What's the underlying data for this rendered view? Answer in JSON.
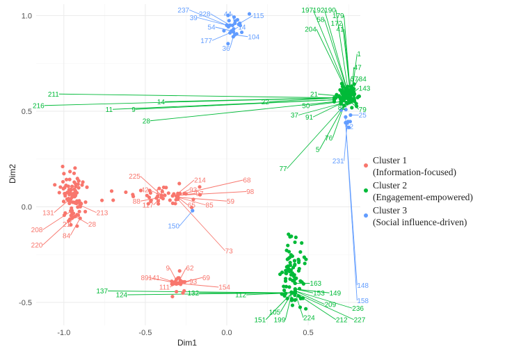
{
  "chart_data": {
    "type": "scatter",
    "title": "",
    "xlabel": "Dim1",
    "ylabel": "Dim2",
    "xlim": [
      -1.17,
      0.82
    ],
    "ylim": [
      -0.62,
      1.06
    ],
    "x_ticks": [
      -1.0,
      -0.5,
      0.0,
      0.5
    ],
    "x_tick_labels": [
      "-1.0",
      "-0.5",
      "0.0",
      "0.5"
    ],
    "y_ticks": [
      -0.5,
      0.0,
      0.5,
      1.0
    ],
    "y_tick_labels": [
      "-0.5",
      "0.0",
      "0.5",
      "1.0"
    ],
    "grid": true,
    "legend_position": "right",
    "series": [
      {
        "name": "Cluster 1",
        "desc": "(Information-focused)",
        "color": "#F8766D"
      },
      {
        "name": "Cluster 2",
        "desc": "(Engagement-empowered)",
        "color": "#00BA38"
      },
      {
        "name": "Cluster 3",
        "desc": "(Social influence-driven)",
        "color": "#619CFF"
      }
    ],
    "groups": [
      {
        "cluster": 1,
        "center": [
          -0.95,
          0.05
        ],
        "sx": 0.04,
        "sy": 0.07,
        "n": 80
      },
      {
        "cluster": 1,
        "center": [
          -0.4,
          0.06
        ],
        "sx": 0.14,
        "sy": 0.025,
        "n": 40
      },
      {
        "cluster": 1,
        "center": [
          -0.3,
          -0.4
        ],
        "sx": 0.03,
        "sy": 0.03,
        "n": 18
      },
      {
        "cluster": 2,
        "center": [
          0.75,
          0.58
        ],
        "sx": 0.03,
        "sy": 0.025,
        "n": 80
      },
      {
        "cluster": 2,
        "center": [
          0.4,
          -0.35
        ],
        "sx": 0.04,
        "sy": 0.09,
        "n": 80
      },
      {
        "cluster": 3,
        "center": [
          0.04,
          0.93
        ],
        "sx": 0.04,
        "sy": 0.05,
        "n": 16
      },
      {
        "cluster": 3,
        "center": [
          0.73,
          0.46
        ],
        "sx": 0.02,
        "sy": 0.03,
        "n": 5
      }
    ],
    "labeled_points": [
      {
        "id": "237",
        "cluster": 3,
        "anchor": [
          0.0,
          0.95
        ],
        "x": -0.23,
        "y": 1.03
      },
      {
        "id": "228",
        "cluster": 3,
        "anchor": [
          0.02,
          0.95
        ],
        "x": -0.1,
        "y": 1.01
      },
      {
        "id": "44",
        "cluster": 3,
        "anchor": [
          0.05,
          0.96
        ],
        "x": 0.03,
        "y": 1.01
      },
      {
        "id": "115",
        "cluster": 3,
        "anchor": [
          0.08,
          0.96
        ],
        "x": 0.16,
        "y": 1.0
      },
      {
        "id": "39",
        "cluster": 3,
        "anchor": [
          0.0,
          0.95
        ],
        "x": -0.18,
        "y": 0.99
      },
      {
        "id": "54",
        "cluster": 3,
        "anchor": [
          0.03,
          0.92
        ],
        "x": -0.07,
        "y": 0.94
      },
      {
        "id": "14",
        "cluster": 3,
        "anchor": [
          0.03,
          0.92
        ],
        "x": 0.07,
        "y": 0.94
      },
      {
        "id": "177",
        "cluster": 3,
        "anchor": [
          0.02,
          0.91
        ],
        "x": -0.09,
        "y": 0.87
      },
      {
        "id": "104",
        "cluster": 3,
        "anchor": [
          0.05,
          0.9
        ],
        "x": 0.13,
        "y": 0.89
      },
      {
        "id": "36",
        "cluster": 3,
        "anchor": [
          0.04,
          0.89
        ],
        "x": 0.02,
        "y": 0.83
      },
      {
        "id": "197",
        "cluster": 2,
        "anchor": [
          0.75,
          0.58
        ],
        "x": 0.53,
        "y": 1.03
      },
      {
        "id": "192",
        "cluster": 2,
        "anchor": [
          0.75,
          0.58
        ],
        "x": 0.6,
        "y": 1.03
      },
      {
        "id": "190",
        "cluster": 2,
        "anchor": [
          0.75,
          0.58
        ],
        "x": 0.67,
        "y": 1.03
      },
      {
        "id": "179",
        "cluster": 2,
        "anchor": [
          0.76,
          0.58
        ],
        "x": 0.72,
        "y": 1.0
      },
      {
        "id": "58",
        "cluster": 2,
        "anchor": [
          0.75,
          0.58
        ],
        "x": 0.6,
        "y": 0.98
      },
      {
        "id": "172",
        "cluster": 2,
        "anchor": [
          0.76,
          0.58
        ],
        "x": 0.71,
        "y": 0.96
      },
      {
        "id": "204",
        "cluster": 2,
        "anchor": [
          0.75,
          0.58
        ],
        "x": 0.55,
        "y": 0.93
      },
      {
        "id": "41",
        "cluster": 2,
        "anchor": [
          0.76,
          0.58
        ],
        "x": 0.72,
        "y": 0.93
      },
      {
        "id": "1",
        "cluster": 2,
        "anchor": [
          0.77,
          0.6
        ],
        "x": 0.8,
        "y": 0.8
      },
      {
        "id": "47",
        "cluster": 2,
        "anchor": [
          0.77,
          0.6
        ],
        "x": 0.78,
        "y": 0.73
      },
      {
        "id": "84",
        "cluster": 2,
        "anchor": [
          0.77,
          0.61
        ],
        "x": 0.81,
        "y": 0.67
      },
      {
        "id": "57",
        "cluster": 2,
        "anchor": [
          0.76,
          0.61
        ],
        "x": 0.76,
        "y": 0.67
      },
      {
        "id": "143",
        "cluster": 2,
        "anchor": [
          0.78,
          0.6
        ],
        "x": 0.81,
        "y": 0.62
      },
      {
        "id": "211",
        "cluster": 2,
        "anchor": [
          0.66,
          0.57
        ],
        "x": -1.03,
        "y": 0.59
      },
      {
        "id": "216",
        "cluster": 2,
        "anchor": [
          0.66,
          0.57
        ],
        "x": -1.12,
        "y": 0.53
      },
      {
        "id": "14",
        "cluster": 2,
        "anchor": [
          0.66,
          0.57
        ],
        "x": -0.38,
        "y": 0.55
      },
      {
        "id": "11",
        "cluster": 2,
        "anchor": [
          0.66,
          0.56
        ],
        "x": -0.7,
        "y": 0.51
      },
      {
        "id": "9",
        "cluster": 2,
        "anchor": [
          0.66,
          0.56
        ],
        "x": -0.56,
        "y": 0.51
      },
      {
        "id": "28",
        "cluster": 2,
        "anchor": [
          0.66,
          0.55
        ],
        "x": -0.47,
        "y": 0.45
      },
      {
        "id": "22",
        "cluster": 2,
        "anchor": [
          0.67,
          0.57
        ],
        "x": 0.26,
        "y": 0.55
      },
      {
        "id": "21",
        "cluster": 2,
        "anchor": [
          0.69,
          0.58
        ],
        "x": 0.56,
        "y": 0.59
      },
      {
        "id": "50",
        "cluster": 2,
        "anchor": [
          0.7,
          0.55
        ],
        "x": 0.51,
        "y": 0.53
      },
      {
        "id": "37",
        "cluster": 2,
        "anchor": [
          0.7,
          0.54
        ],
        "x": 0.44,
        "y": 0.48
      },
      {
        "id": "91",
        "cluster": 2,
        "anchor": [
          0.7,
          0.54
        ],
        "x": 0.53,
        "y": 0.47
      },
      {
        "id": "81",
        "cluster": 2,
        "anchor": [
          0.74,
          0.54
        ],
        "x": 0.73,
        "y": 0.52
      },
      {
        "id": "79",
        "cluster": 2,
        "anchor": [
          0.76,
          0.55
        ],
        "x": 0.81,
        "y": 0.51
      },
      {
        "id": "76",
        "cluster": 2,
        "anchor": [
          0.72,
          0.53
        ],
        "x": 0.65,
        "y": 0.36
      },
      {
        "id": "5",
        "cluster": 2,
        "anchor": [
          0.72,
          0.53
        ],
        "x": 0.57,
        "y": 0.3
      },
      {
        "id": "77",
        "cluster": 2,
        "anchor": [
          0.72,
          0.53
        ],
        "x": 0.37,
        "y": 0.2
      },
      {
        "id": "25",
        "cluster": 3,
        "anchor": [
          0.76,
          0.48
        ],
        "x": 0.81,
        "y": 0.48
      },
      {
        "id": "52",
        "cluster": 3,
        "anchor": [
          0.73,
          0.47
        ],
        "x": 0.73,
        "y": 0.42
      },
      {
        "id": "231",
        "cluster": 3,
        "anchor": [
          0.74,
          0.44
        ],
        "x": 0.72,
        "y": 0.24
      },
      {
        "id": "148",
        "cluster": 3,
        "anchor": [
          0.73,
          0.44
        ],
        "x": 0.8,
        "y": -0.41
      },
      {
        "id": "158",
        "cluster": 3,
        "anchor": [
          0.73,
          0.44
        ],
        "x": 0.8,
        "y": -0.49
      },
      {
        "id": "131",
        "cluster": 1,
        "anchor": [
          -0.95,
          0.05
        ],
        "x": -1.06,
        "y": -0.03
      },
      {
        "id": "213",
        "cluster": 1,
        "anchor": [
          -0.93,
          0.02
        ],
        "x": -0.8,
        "y": -0.03
      },
      {
        "id": "208",
        "cluster": 1,
        "anchor": [
          -0.95,
          -0.02
        ],
        "x": -1.13,
        "y": -0.12
      },
      {
        "id": "21",
        "cluster": 1,
        "anchor": [
          -0.95,
          -0.05
        ],
        "x": -0.96,
        "y": -0.09
      },
      {
        "id": "28",
        "cluster": 1,
        "anchor": [
          -0.93,
          -0.05
        ],
        "x": -0.85,
        "y": -0.09
      },
      {
        "id": "84",
        "cluster": 1,
        "anchor": [
          -0.9,
          -0.06
        ],
        "x": -0.96,
        "y": -0.15
      },
      {
        "id": "220",
        "cluster": 1,
        "anchor": [
          -0.95,
          -0.06
        ],
        "x": -1.13,
        "y": -0.2
      },
      {
        "id": "225",
        "cluster": 1,
        "anchor": [
          -0.4,
          0.06
        ],
        "x": -0.53,
        "y": 0.16
      },
      {
        "id": "214",
        "cluster": 1,
        "anchor": [
          -0.3,
          0.07
        ],
        "x": -0.2,
        "y": 0.14
      },
      {
        "id": "68",
        "cluster": 1,
        "anchor": [
          -0.26,
          0.07
        ],
        "x": 0.1,
        "y": 0.14
      },
      {
        "id": "42",
        "cluster": 1,
        "anchor": [
          -0.4,
          0.06
        ],
        "x": -0.48,
        "y": 0.09
      },
      {
        "id": "17",
        "cluster": 1,
        "anchor": [
          -0.38,
          0.06
        ],
        "x": -0.39,
        "y": 0.08
      },
      {
        "id": "93",
        "cluster": 1,
        "anchor": [
          -0.3,
          0.06
        ],
        "x": -0.23,
        "y": 0.09
      },
      {
        "id": "97",
        "cluster": 1,
        "anchor": [
          -0.3,
          0.06
        ],
        "x": -0.19,
        "y": 0.07
      },
      {
        "id": "98",
        "cluster": 1,
        "anchor": [
          -0.3,
          0.06
        ],
        "x": 0.12,
        "y": 0.08
      },
      {
        "id": "88",
        "cluster": 1,
        "anchor": [
          -0.4,
          0.05
        ],
        "x": -0.53,
        "y": 0.03
      },
      {
        "id": "117",
        "cluster": 1,
        "anchor": [
          -0.4,
          0.05
        ],
        "x": -0.45,
        "y": 0.01
      },
      {
        "id": "59",
        "cluster": 1,
        "anchor": [
          -0.3,
          0.05
        ],
        "x": 0.0,
        "y": 0.03
      },
      {
        "id": "85",
        "cluster": 1,
        "anchor": [
          -0.3,
          0.05
        ],
        "x": -0.13,
        "y": 0.01
      },
      {
        "id": "65",
        "cluster": 1,
        "anchor": [
          -0.3,
          0.05
        ],
        "x": -0.24,
        "y": 0.01
      },
      {
        "id": "73",
        "cluster": 1,
        "anchor": [
          -0.3,
          0.04
        ],
        "x": -0.01,
        "y": -0.23
      },
      {
        "id": "150",
        "cluster": 3,
        "anchor": [
          -0.21,
          -0.02
        ],
        "x": -0.29,
        "y": -0.1
      },
      {
        "id": "9",
        "cluster": 1,
        "anchor": [
          -0.3,
          -0.4
        ],
        "x": -0.35,
        "y": -0.32
      },
      {
        "id": "62",
        "cluster": 1,
        "anchor": [
          -0.3,
          -0.4
        ],
        "x": -0.25,
        "y": -0.32
      },
      {
        "id": "89",
        "cluster": 1,
        "anchor": [
          -0.3,
          -0.4
        ],
        "x": -0.48,
        "y": -0.37
      },
      {
        "id": "141",
        "cluster": 1,
        "anchor": [
          -0.3,
          -0.4
        ],
        "x": -0.41,
        "y": -0.37
      },
      {
        "id": "69",
        "cluster": 1,
        "anchor": [
          -0.3,
          -0.4
        ],
        "x": -0.15,
        "y": -0.37
      },
      {
        "id": "93",
        "cluster": 1,
        "anchor": [
          -0.3,
          -0.4
        ],
        "x": -0.23,
        "y": -0.39
      },
      {
        "id": "111",
        "cluster": 1,
        "anchor": [
          -0.3,
          -0.4
        ],
        "x": -0.35,
        "y": -0.42
      },
      {
        "id": "154",
        "cluster": 1,
        "anchor": [
          -0.3,
          -0.4
        ],
        "x": -0.05,
        "y": -0.42
      },
      {
        "id": "137",
        "cluster": 2,
        "anchor": [
          0.4,
          -0.45
        ],
        "x": -0.73,
        "y": -0.44
      },
      {
        "id": "124",
        "cluster": 2,
        "anchor": [
          0.4,
          -0.45
        ],
        "x": -0.61,
        "y": -0.46
      },
      {
        "id": "132",
        "cluster": 2,
        "anchor": [
          0.4,
          -0.45
        ],
        "x": -0.17,
        "y": -0.45
      },
      {
        "id": "112",
        "cluster": 2,
        "anchor": [
          0.4,
          -0.45
        ],
        "x": 0.12,
        "y": -0.46
      },
      {
        "id": "163",
        "cluster": 2,
        "anchor": [
          0.42,
          -0.4
        ],
        "x": 0.51,
        "y": -0.4
      },
      {
        "id": "153",
        "cluster": 2,
        "anchor": [
          0.42,
          -0.43
        ],
        "x": 0.53,
        "y": -0.45
      },
      {
        "id": "149",
        "cluster": 2,
        "anchor": [
          0.42,
          -0.43
        ],
        "x": 0.63,
        "y": -0.45
      },
      {
        "id": "209",
        "cluster": 2,
        "anchor": [
          0.42,
          -0.44
        ],
        "x": 0.6,
        "y": -0.51
      },
      {
        "id": "236",
        "cluster": 2,
        "anchor": [
          0.42,
          -0.44
        ],
        "x": 0.77,
        "y": -0.53
      },
      {
        "id": "105",
        "cluster": 2,
        "anchor": [
          0.4,
          -0.45
        ],
        "x": 0.33,
        "y": -0.55
      },
      {
        "id": "151",
        "cluster": 2,
        "anchor": [
          0.4,
          -0.45
        ],
        "x": 0.24,
        "y": -0.59
      },
      {
        "id": "199",
        "cluster": 2,
        "anchor": [
          0.4,
          -0.45
        ],
        "x": 0.36,
        "y": -0.59
      },
      {
        "id": "224",
        "cluster": 2,
        "anchor": [
          0.42,
          -0.45
        ],
        "x": 0.47,
        "y": -0.58
      },
      {
        "id": "212",
        "cluster": 2,
        "anchor": [
          0.42,
          -0.45
        ],
        "x": 0.67,
        "y": -0.59
      },
      {
        "id": "227",
        "cluster": 2,
        "anchor": [
          0.42,
          -0.45
        ],
        "x": 0.78,
        "y": -0.59
      }
    ]
  }
}
